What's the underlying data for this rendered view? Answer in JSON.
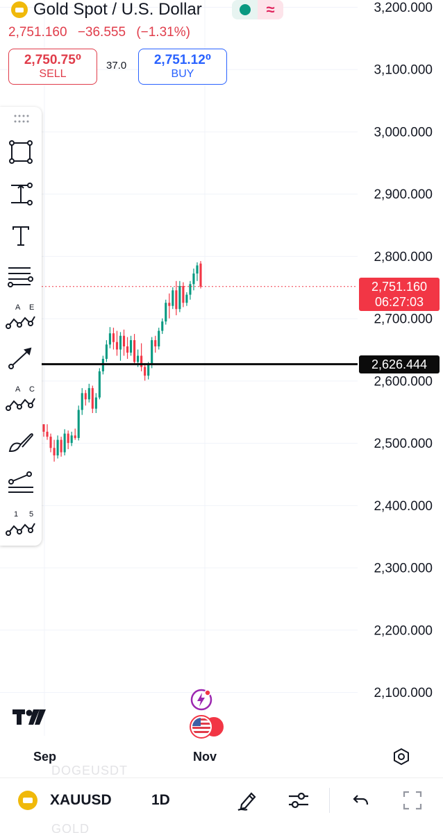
{
  "header": {
    "title": "Gold Spot / U.S. Dollar",
    "last_price": "2,751.160",
    "change": "−36.555",
    "change_pct": "(−1.31%)",
    "status_color": "#089981",
    "status_icon": "market-status-dot",
    "mode_icon": "wave-icon"
  },
  "trade": {
    "sell_price": "2,750.75⁰",
    "sell_label": "SELL",
    "spread": "37.0",
    "buy_price": "2,751.12⁰",
    "buy_label": "BUY"
  },
  "toolbar": {
    "tools": [
      "drag-handle-icon",
      "rectangle-tool-icon",
      "measure-tool-icon",
      "text-tool-icon",
      "fib-retracement-icon",
      "ae-pattern-icon",
      "trend-line-icon",
      "ac-pattern-icon",
      "brush-icon",
      "parallel-channel-icon",
      "elliott-wave-icon"
    ],
    "pattern_ae": [
      "A",
      "E"
    ],
    "pattern_ac": [
      "A",
      "C"
    ],
    "pattern_15": [
      "1",
      "5"
    ]
  },
  "axis": {
    "x_labels": [
      "Sep",
      "Nov"
    ],
    "price_tag_current": "2,751.160",
    "countdown": "06:27:03",
    "price_tag_line": "2,626.444"
  },
  "chart_data": {
    "type": "candlestick",
    "symbol": "XAUUSD",
    "interval": "1D",
    "y_ticks": [
      3200,
      3100,
      3000,
      2900,
      2800,
      2700,
      2600,
      2500,
      2400,
      2300,
      2200,
      2100
    ],
    "y_tick_labels": [
      "3,200.000",
      "3,100.000",
      "3,000.000",
      "2,900.000",
      "2,800.000",
      "2,700.000",
      "2,600.000",
      "2,500.000",
      "2,400.000",
      "2,300.000",
      "2,200.000",
      "2,100.000"
    ],
    "y_range": [
      2050,
      3220
    ],
    "x_tick_labels": [
      "Sep",
      "Nov"
    ],
    "horizontal_line": 2626.444,
    "current_price": 2751.16,
    "candles": [
      [
        2530,
        2530,
        2510,
        2518
      ],
      [
        2518,
        2530,
        2505,
        2510
      ],
      [
        2510,
        2515,
        2485,
        2492
      ],
      [
        2492,
        2505,
        2470,
        2480
      ],
      [
        2480,
        2512,
        2475,
        2505
      ],
      [
        2505,
        2510,
        2478,
        2485
      ],
      [
        2485,
        2522,
        2480,
        2515
      ],
      [
        2515,
        2520,
        2490,
        2500
      ],
      [
        2500,
        2518,
        2495,
        2512
      ],
      [
        2512,
        2523,
        2505,
        2508
      ],
      [
        2508,
        2560,
        2504,
        2553
      ],
      [
        2553,
        2588,
        2545,
        2580
      ],
      [
        2580,
        2585,
        2560,
        2570
      ],
      [
        2570,
        2595,
        2565,
        2588
      ],
      [
        2588,
        2592,
        2548,
        2555
      ],
      [
        2555,
        2580,
        2548,
        2573
      ],
      [
        2573,
        2620,
        2570,
        2615
      ],
      [
        2615,
        2640,
        2610,
        2635
      ],
      [
        2635,
        2665,
        2630,
        2658
      ],
      [
        2658,
        2686,
        2652,
        2676
      ],
      [
        2676,
        2685,
        2650,
        2662
      ],
      [
        2662,
        2680,
        2640,
        2650
      ],
      [
        2650,
        2678,
        2632,
        2672
      ],
      [
        2672,
        2682,
        2640,
        2655
      ],
      [
        2655,
        2670,
        2635,
        2645
      ],
      [
        2645,
        2672,
        2640,
        2665
      ],
      [
        2665,
        2675,
        2625,
        2630
      ],
      [
        2630,
        2650,
        2622,
        2640
      ],
      [
        2640,
        2660,
        2615,
        2622
      ],
      [
        2622,
        2628,
        2600,
        2608
      ],
      [
        2608,
        2630,
        2602,
        2625
      ],
      [
        2625,
        2670,
        2620,
        2665
      ],
      [
        2665,
        2672,
        2645,
        2655
      ],
      [
        2655,
        2685,
        2650,
        2680
      ],
      [
        2680,
        2700,
        2675,
        2695
      ],
      [
        2695,
        2730,
        2690,
        2725
      ],
      [
        2725,
        2740,
        2700,
        2720
      ],
      [
        2720,
        2750,
        2715,
        2745
      ],
      [
        2745,
        2760,
        2705,
        2715
      ],
      [
        2715,
        2760,
        2710,
        2752
      ],
      [
        2752,
        2758,
        2718,
        2725
      ],
      [
        2725,
        2742,
        2720,
        2738
      ],
      [
        2738,
        2760,
        2730,
        2755
      ],
      [
        2755,
        2780,
        2745,
        2772
      ],
      [
        2772,
        2790,
        2760,
        2785
      ],
      [
        2788,
        2792,
        2748,
        2751
      ]
    ]
  },
  "bottom_bar": {
    "symbol": "XAUUSD",
    "interval": "1D",
    "ghost_top": "DOGEUSDT",
    "ghost_bottom": "GOLD"
  },
  "colors": {
    "up": "#089981",
    "down": "#f23645",
    "accent_blue": "#2962ff",
    "gold": "#f0b90b"
  }
}
